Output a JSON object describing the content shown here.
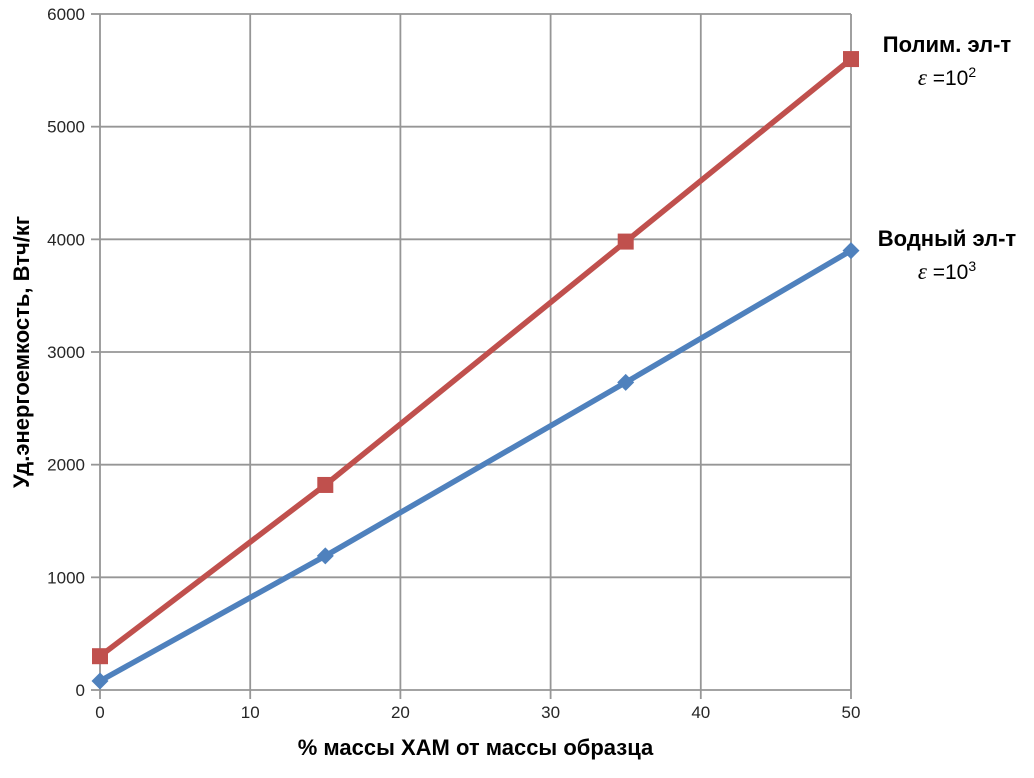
{
  "chart_data": {
    "type": "line",
    "x": [
      0,
      15,
      35,
      50
    ],
    "series": [
      {
        "name": "Полим. эл-т",
        "eps_symbol": "ε",
        "eps_base": " =10",
        "eps_exp": "2",
        "values": [
          300,
          1820,
          3980,
          5600
        ],
        "color": "#C0504D",
        "marker": "square"
      },
      {
        "name": "Водный эл-т",
        "eps_symbol": "ε",
        "eps_base": " =10",
        "eps_exp": "3",
        "values": [
          80,
          1190,
          2730,
          3900
        ],
        "color": "#4F81BD",
        "marker": "diamond"
      }
    ],
    "xlabel": "% массы ХАМ от массы образца",
    "ylabel": "Уд.энергоемкость, Втч/кг",
    "xlim": [
      0,
      50
    ],
    "ylim": [
      0,
      6000
    ],
    "xticks": [
      0,
      10,
      20,
      30,
      40,
      50
    ],
    "yticks": [
      0,
      1000,
      2000,
      3000,
      4000,
      5000,
      6000
    ],
    "grid": true,
    "grid_color": "#969696",
    "tick_label_color": "#262626",
    "legend_position": "right-outside"
  }
}
